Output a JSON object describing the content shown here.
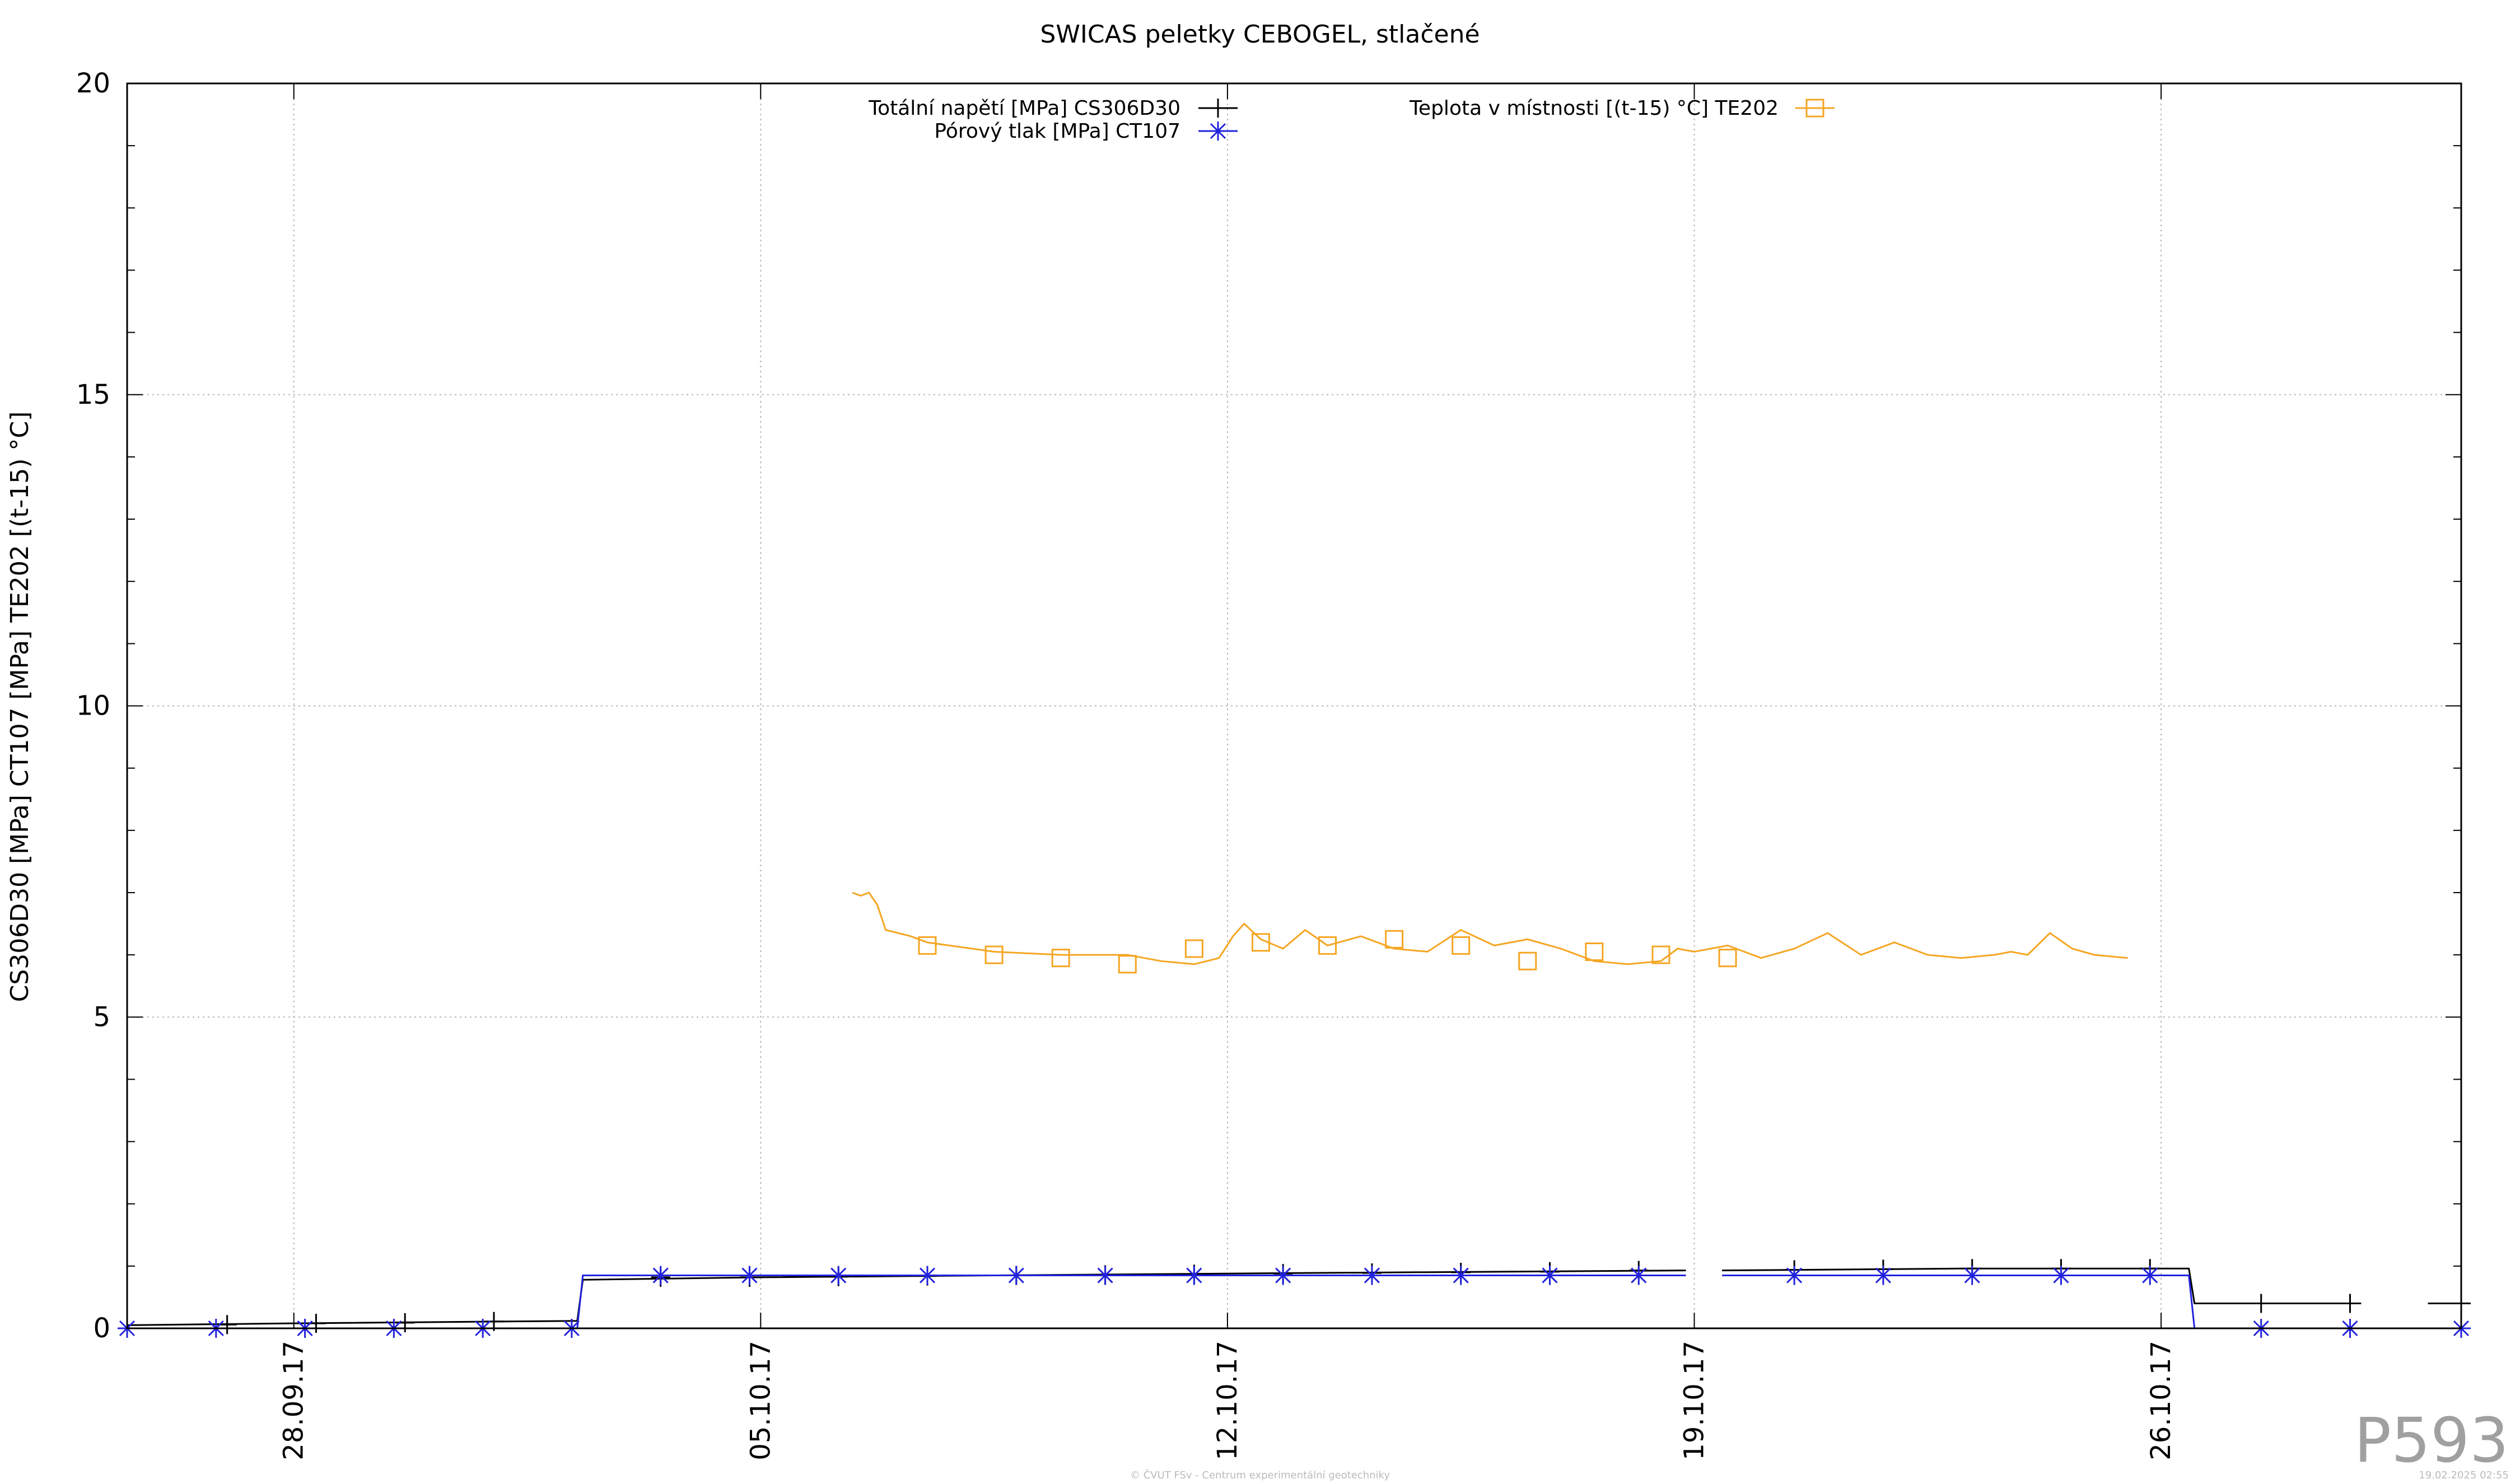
{
  "chart_data": {
    "type": "line",
    "title": "SWICAS peletky CEBOGEL, stlačené",
    "ylabel": "CS306D30 [MPa] CT107 [MPa] TE202 [(t-15) °C]",
    "xlabel": "",
    "ylim": [
      0,
      20
    ],
    "yticks": [
      "0",
      "5",
      "10",
      "15",
      "20"
    ],
    "xlim": [
      "2017-09-25 12:00",
      "2017-10-30 12:00"
    ],
    "xticks": [
      {
        "date": "2017-09-28",
        "label": "28.09.17"
      },
      {
        "date": "2017-10-05",
        "label": "05.10.17"
      },
      {
        "date": "2017-10-12",
        "label": "12.10.17"
      },
      {
        "date": "2017-10-19",
        "label": "19.10.17"
      },
      {
        "date": "2017-10-26",
        "label": "26.10.17"
      }
    ],
    "grid": true,
    "legend_position": "top",
    "series": [
      {
        "name": "Totální napětí [MPa] CS306D30",
        "color": "#000000",
        "marker": "plus",
        "segments": [
          [
            [
              "2017-09-25 12:00",
              0.05
            ],
            [
              "2017-09-28 00:00",
              0.08
            ],
            [
              "2017-10-02 06:00",
              0.12
            ],
            [
              "2017-10-02 08:00",
              0.78
            ],
            [
              "2017-10-05 00:00",
              0.82
            ],
            [
              "2017-10-12 00:00",
              0.88
            ],
            [
              "2017-10-18 21:00",
              0.93
            ]
          ],
          [
            [
              "2017-10-19 10:00",
              0.93
            ],
            [
              "2017-10-23 00:00",
              0.96
            ],
            [
              "2017-10-26 10:00",
              0.96
            ],
            [
              "2017-10-26 12:00",
              0.4
            ],
            [
              "2017-10-29 00:00",
              0.4
            ]
          ],
          [
            [
              "2017-10-30 00:00",
              0.4
            ],
            [
              "2017-10-30 11:00",
              0.4
            ]
          ]
        ],
        "markers": [
          [
            "2017-09-27 00:00",
            0.06
          ],
          [
            "2017-09-28 08:00",
            0.08
          ],
          [
            "2017-09-29 16:00",
            0.09
          ],
          [
            "2017-10-01 00:00",
            0.11
          ],
          [
            "2017-10-03 12:00",
            0.82
          ],
          [
            "2017-10-04 20:00",
            0.82
          ],
          [
            "2017-10-06 04:00",
            0.83
          ],
          [
            "2017-10-07 12:00",
            0.84
          ],
          [
            "2017-10-08 20:00",
            0.85
          ],
          [
            "2017-10-10 04:00",
            0.86
          ],
          [
            "2017-10-11 12:00",
            0.87
          ],
          [
            "2017-10-12 20:00",
            0.88
          ],
          [
            "2017-10-14 04:00",
            0.89
          ],
          [
            "2017-10-15 12:00",
            0.9
          ],
          [
            "2017-10-16 20:00",
            0.91
          ],
          [
            "2017-10-18 04:00",
            0.93
          ],
          [
            "2017-10-20 12:00",
            0.94
          ],
          [
            "2017-10-21 20:00",
            0.95
          ],
          [
            "2017-10-23 04:00",
            0.96
          ],
          [
            "2017-10-24 12:00",
            0.96
          ],
          [
            "2017-10-25 20:00",
            0.96
          ],
          [
            "2017-10-27 12:00",
            0.4
          ],
          [
            "2017-10-28 20:00",
            0.4
          ],
          [
            "2017-10-30 12:00",
            0.4
          ]
        ]
      },
      {
        "name": "Pórový tlak [MPa] CT107",
        "color": "#2222dd",
        "marker": "star",
        "segments": [
          [
            [
              "2017-09-25 12:00",
              0.0
            ],
            [
              "2017-10-02 06:00",
              0.0
            ],
            [
              "2017-10-02 08:00",
              0.85
            ],
            [
              "2017-10-18 21:00",
              0.85
            ]
          ],
          [
            [
              "2017-10-19 10:00",
              0.85
            ],
            [
              "2017-10-26 10:00",
              0.85
            ],
            [
              "2017-10-26 12:00",
              0.0
            ],
            [
              "2017-10-29 00:00",
              0.0
            ]
          ],
          [
            [
              "2017-10-30 00:00",
              0.0
            ],
            [
              "2017-10-30 11:00",
              0.0
            ]
          ]
        ],
        "markers": [
          [
            "2017-09-25 12:00",
            0.0
          ],
          [
            "2017-09-26 20:00",
            0.0
          ],
          [
            "2017-09-28 04:00",
            0.0
          ],
          [
            "2017-09-29 12:00",
            0.0
          ],
          [
            "2017-09-30 20:00",
            0.0
          ],
          [
            "2017-10-02 04:00",
            0.0
          ],
          [
            "2017-10-03 12:00",
            0.85
          ],
          [
            "2017-10-04 20:00",
            0.85
          ],
          [
            "2017-10-06 04:00",
            0.85
          ],
          [
            "2017-10-07 12:00",
            0.85
          ],
          [
            "2017-10-08 20:00",
            0.85
          ],
          [
            "2017-10-10 04:00",
            0.85
          ],
          [
            "2017-10-11 12:00",
            0.85
          ],
          [
            "2017-10-12 20:00",
            0.85
          ],
          [
            "2017-10-14 04:00",
            0.85
          ],
          [
            "2017-10-15 12:00",
            0.85
          ],
          [
            "2017-10-16 20:00",
            0.85
          ],
          [
            "2017-10-18 04:00",
            0.85
          ],
          [
            "2017-10-20 12:00",
            0.85
          ],
          [
            "2017-10-21 20:00",
            0.85
          ],
          [
            "2017-10-23 04:00",
            0.85
          ],
          [
            "2017-10-24 12:00",
            0.85
          ],
          [
            "2017-10-25 20:00",
            0.85
          ],
          [
            "2017-10-27 12:00",
            0.0
          ],
          [
            "2017-10-28 20:00",
            0.0
          ],
          [
            "2017-10-30 12:00",
            0.0
          ]
        ]
      },
      {
        "name": "Teplota v místnosti [(t-15) °C] TE202",
        "color": "#f5a623",
        "marker": "square",
        "segments": [
          [
            [
              "2017-10-06 09:00",
              7.0
            ],
            [
              "2017-10-06 12:00",
              6.95
            ],
            [
              "2017-10-06 15:00",
              7.0
            ],
            [
              "2017-10-06 18:00",
              6.8
            ],
            [
              "2017-10-06 21:00",
              6.4
            ],
            [
              "2017-10-07 06:00",
              6.3
            ],
            [
              "2017-10-07 12:00",
              6.2
            ],
            [
              "2017-10-08 12:00",
              6.05
            ],
            [
              "2017-10-09 12:00",
              6.0
            ],
            [
              "2017-10-10 12:00",
              6.0
            ],
            [
              "2017-10-11 00:00",
              5.9
            ],
            [
              "2017-10-11 12:00",
              5.85
            ],
            [
              "2017-10-11 21:00",
              5.95
            ],
            [
              "2017-10-12 02:00",
              6.3
            ],
            [
              "2017-10-12 06:00",
              6.5
            ],
            [
              "2017-10-12 12:00",
              6.25
            ],
            [
              "2017-10-12 20:00",
              6.1
            ],
            [
              "2017-10-13 04:00",
              6.4
            ],
            [
              "2017-10-13 12:00",
              6.15
            ],
            [
              "2017-10-14 00:00",
              6.3
            ],
            [
              "2017-10-14 12:00",
              6.1
            ],
            [
              "2017-10-15 00:00",
              6.05
            ],
            [
              "2017-10-15 12:00",
              6.4
            ],
            [
              "2017-10-16 00:00",
              6.15
            ],
            [
              "2017-10-16 12:00",
              6.25
            ],
            [
              "2017-10-17 00:00",
              6.1
            ],
            [
              "2017-10-17 12:00",
              5.9
            ],
            [
              "2017-10-18 00:00",
              5.85
            ],
            [
              "2017-10-18 12:00",
              5.9
            ],
            [
              "2017-10-18 18:00",
              6.1
            ],
            [
              "2017-10-19 00:00",
              6.05
            ],
            [
              "2017-10-19 12:00",
              6.15
            ],
            [
              "2017-10-20 00:00",
              5.95
            ],
            [
              "2017-10-20 12:00",
              6.1
            ],
            [
              "2017-10-21 00:00",
              6.35
            ],
            [
              "2017-10-21 12:00",
              6.0
            ],
            [
              "2017-10-22 00:00",
              6.2
            ],
            [
              "2017-10-22 12:00",
              6.0
            ],
            [
              "2017-10-23 00:00",
              5.95
            ],
            [
              "2017-10-23 12:00",
              6.0
            ],
            [
              "2017-10-23 18:00",
              6.05
            ],
            [
              "2017-10-24 00:00",
              6.0
            ],
            [
              "2017-10-24 08:00",
              6.35
            ],
            [
              "2017-10-24 16:00",
              6.1
            ],
            [
              "2017-10-25 00:00",
              6.0
            ],
            [
              "2017-10-25 12:00",
              5.95
            ]
          ]
        ],
        "markers": [
          [
            "2017-10-07 12:00",
            6.15
          ],
          [
            "2017-10-08 12:00",
            6.0
          ],
          [
            "2017-10-09 12:00",
            5.95
          ],
          [
            "2017-10-10 12:00",
            5.85
          ],
          [
            "2017-10-11 12:00",
            6.1
          ],
          [
            "2017-10-12 12:00",
            6.2
          ],
          [
            "2017-10-13 12:00",
            6.15
          ],
          [
            "2017-10-14 12:00",
            6.25
          ],
          [
            "2017-10-15 12:00",
            6.15
          ],
          [
            "2017-10-16 12:00",
            5.9
          ],
          [
            "2017-10-17 12:00",
            6.05
          ],
          [
            "2017-10-18 12:00",
            6.0
          ],
          [
            "2017-10-19 12:00",
            5.95
          ]
        ]
      }
    ]
  },
  "watermark": "P593",
  "footer_credit": "© ČVUT FSv - Centrum experimentální geotechniky",
  "footer_timestamp": "19.02.2025 02:55"
}
